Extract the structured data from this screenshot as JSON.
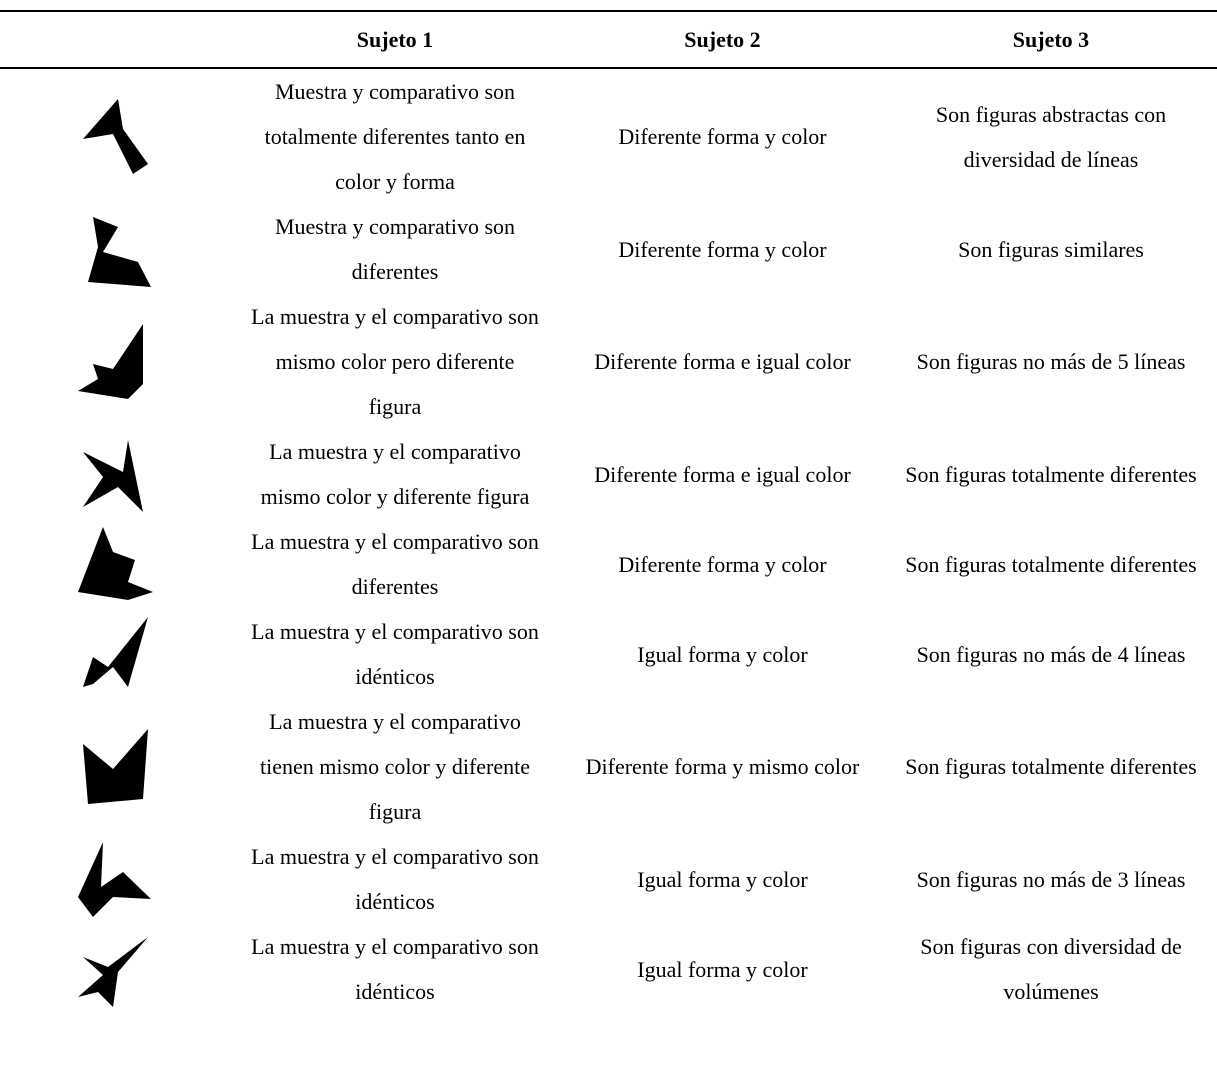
{
  "table": {
    "header": [
      "Sujeto 1",
      "Sujeto 2",
      "Sujeto 3"
    ],
    "rows": [
      [
        "Muestra y comparativo son totalmente diferentes tanto en color y forma",
        "Diferente forma y color",
        "Son figuras abstractas con diversidad de líneas"
      ],
      [
        "Muestra y comparativo son diferentes",
        "Diferente forma y color",
        "Son figuras similares"
      ],
      [
        "La muestra y el comparativo son mismo color pero diferente figura",
        "Diferente forma e igual color",
        "Son figuras no más de 5 líneas"
      ],
      [
        "La muestra y el comparativo mismo color y diferente figura",
        "Diferente forma e igual color",
        "Son figuras totalmente diferentes"
      ],
      [
        "La muestra y el comparativo son diferentes",
        "Diferente forma y color",
        "Son figuras totalmente diferentes"
      ],
      [
        "La muestra y el comparativo son idénticos",
        "Igual forma y color",
        "Son figuras no más de 4 líneas"
      ],
      [
        "La muestra y el comparativo tienen mismo color y diferente figura",
        "Diferente forma y mismo color",
        "Son figuras totalmente diferentes"
      ],
      [
        "La muestra y el comparativo son idénticos",
        "Igual forma y color",
        "Son figuras no más de 3 líneas"
      ],
      [
        "La muestra y el comparativo son idénticos",
        "Igual forma y color",
        "Son figuras con diversidad de volúmenes"
      ]
    ]
  }
}
